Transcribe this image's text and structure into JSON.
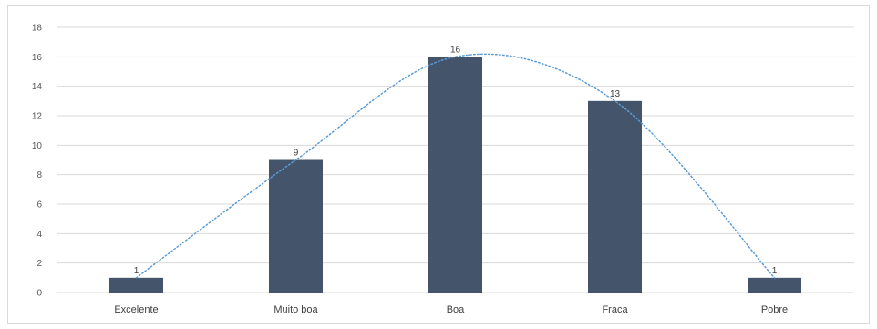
{
  "chart_data": {
    "type": "bar",
    "categories": [
      "Excelente",
      "Muito boa",
      "Boa",
      "Fraca",
      "Pobre"
    ],
    "values": [
      1,
      9,
      16,
      13,
      1
    ],
    "data_labels": [
      "1",
      "9",
      "16",
      "13",
      "1"
    ],
    "ylim": [
      0,
      18
    ],
    "yticks": [
      0,
      2,
      4,
      6,
      8,
      10,
      12,
      14,
      16,
      18
    ],
    "grid": true,
    "trendline": {
      "style": "dotted",
      "type": "polynomial"
    },
    "colors": {
      "bar": "#44546a",
      "trendline": "#5b9bd5",
      "grid": "#d9d9d9"
    }
  }
}
